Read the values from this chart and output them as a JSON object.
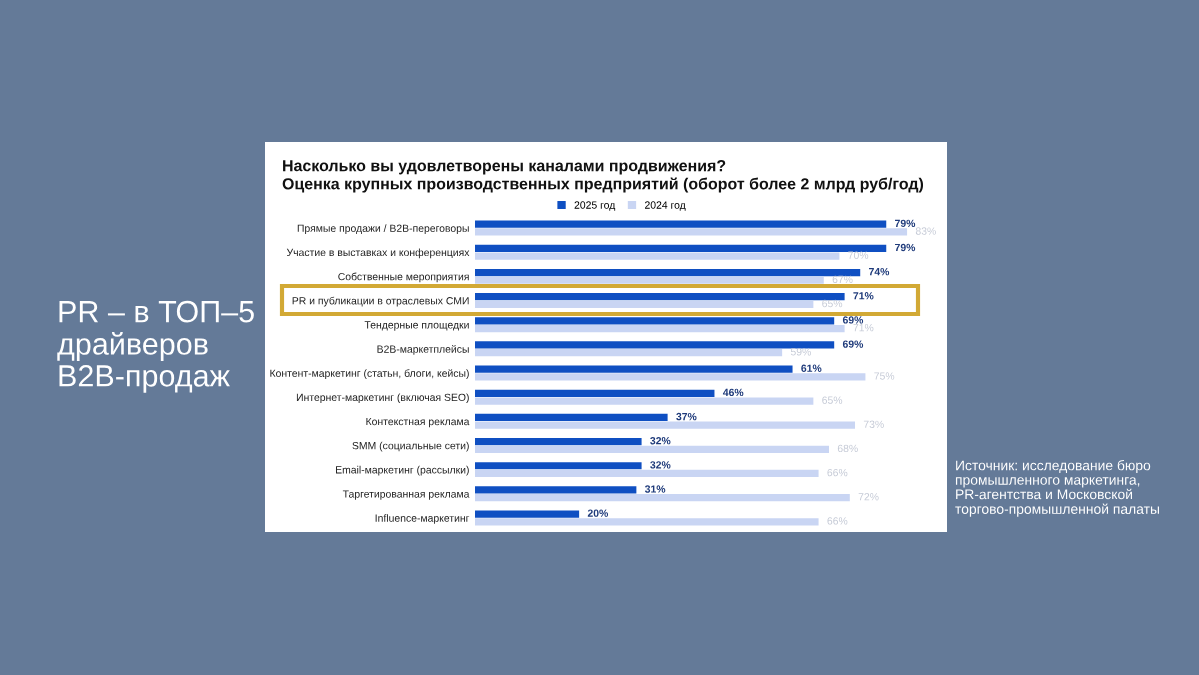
{
  "chart_data": {
    "type": "bar",
    "orientation": "horizontal",
    "title": "Насколько вы удовлетворены каналами продвижения?",
    "subtitle": "Оценка крупных производственных предприятий (оборот более 2 млрд руб/год)",
    "categories": [
      "Прямые продажи / B2B-переговоры",
      "Участие в выставках и конференциях",
      "Собственные мероприятия",
      "PR и публикации в отраслевых СМИ",
      "Тендерные площедки",
      "B2B-маркетплейсы",
      "Контент-маркетинг (статьн, блоги, кейсы)",
      "Интернет-маркетинг (включая SEO)",
      "Контекстная реклама",
      "SMM (социальные сети)",
      "Email-маркетинг (рассылки)",
      "Таргетированная реклама",
      "Influence-маркетинг"
    ],
    "series": [
      {
        "name": "2025 год",
        "color": "#0f4fc2",
        "values": [
          79,
          79,
          74,
          71,
          69,
          69,
          61,
          46,
          37,
          32,
          32,
          31,
          20
        ],
        "value_labels": [
          "79%",
          "79%",
          "74%",
          "71%",
          "69%",
          "69%",
          "61%",
          "46%",
          "37%",
          "32%",
          "32%",
          "31%",
          "20%"
        ]
      },
      {
        "name": "2024 год",
        "color": "#c9d5f3",
        "values": [
          83,
          70,
          67,
          65,
          71,
          59,
          75,
          65,
          73,
          68,
          66,
          72,
          66
        ],
        "value_labels": [
          "83%",
          "70%",
          "67%",
          "65%",
          "71%",
          "59%",
          "75%",
          "65%",
          "73%",
          "68%",
          "66%",
          "72%",
          "66%"
        ]
      }
    ],
    "legend": "top",
    "annotations": [
      "PR – в ТОП–5\nдрайверов\nB2B-продаж",
      "Источник: исследование бюро\nпромышленного маркетинга,\nPR-агентства и Московской\nторгово-промышленной палаты"
    ]
  }
}
